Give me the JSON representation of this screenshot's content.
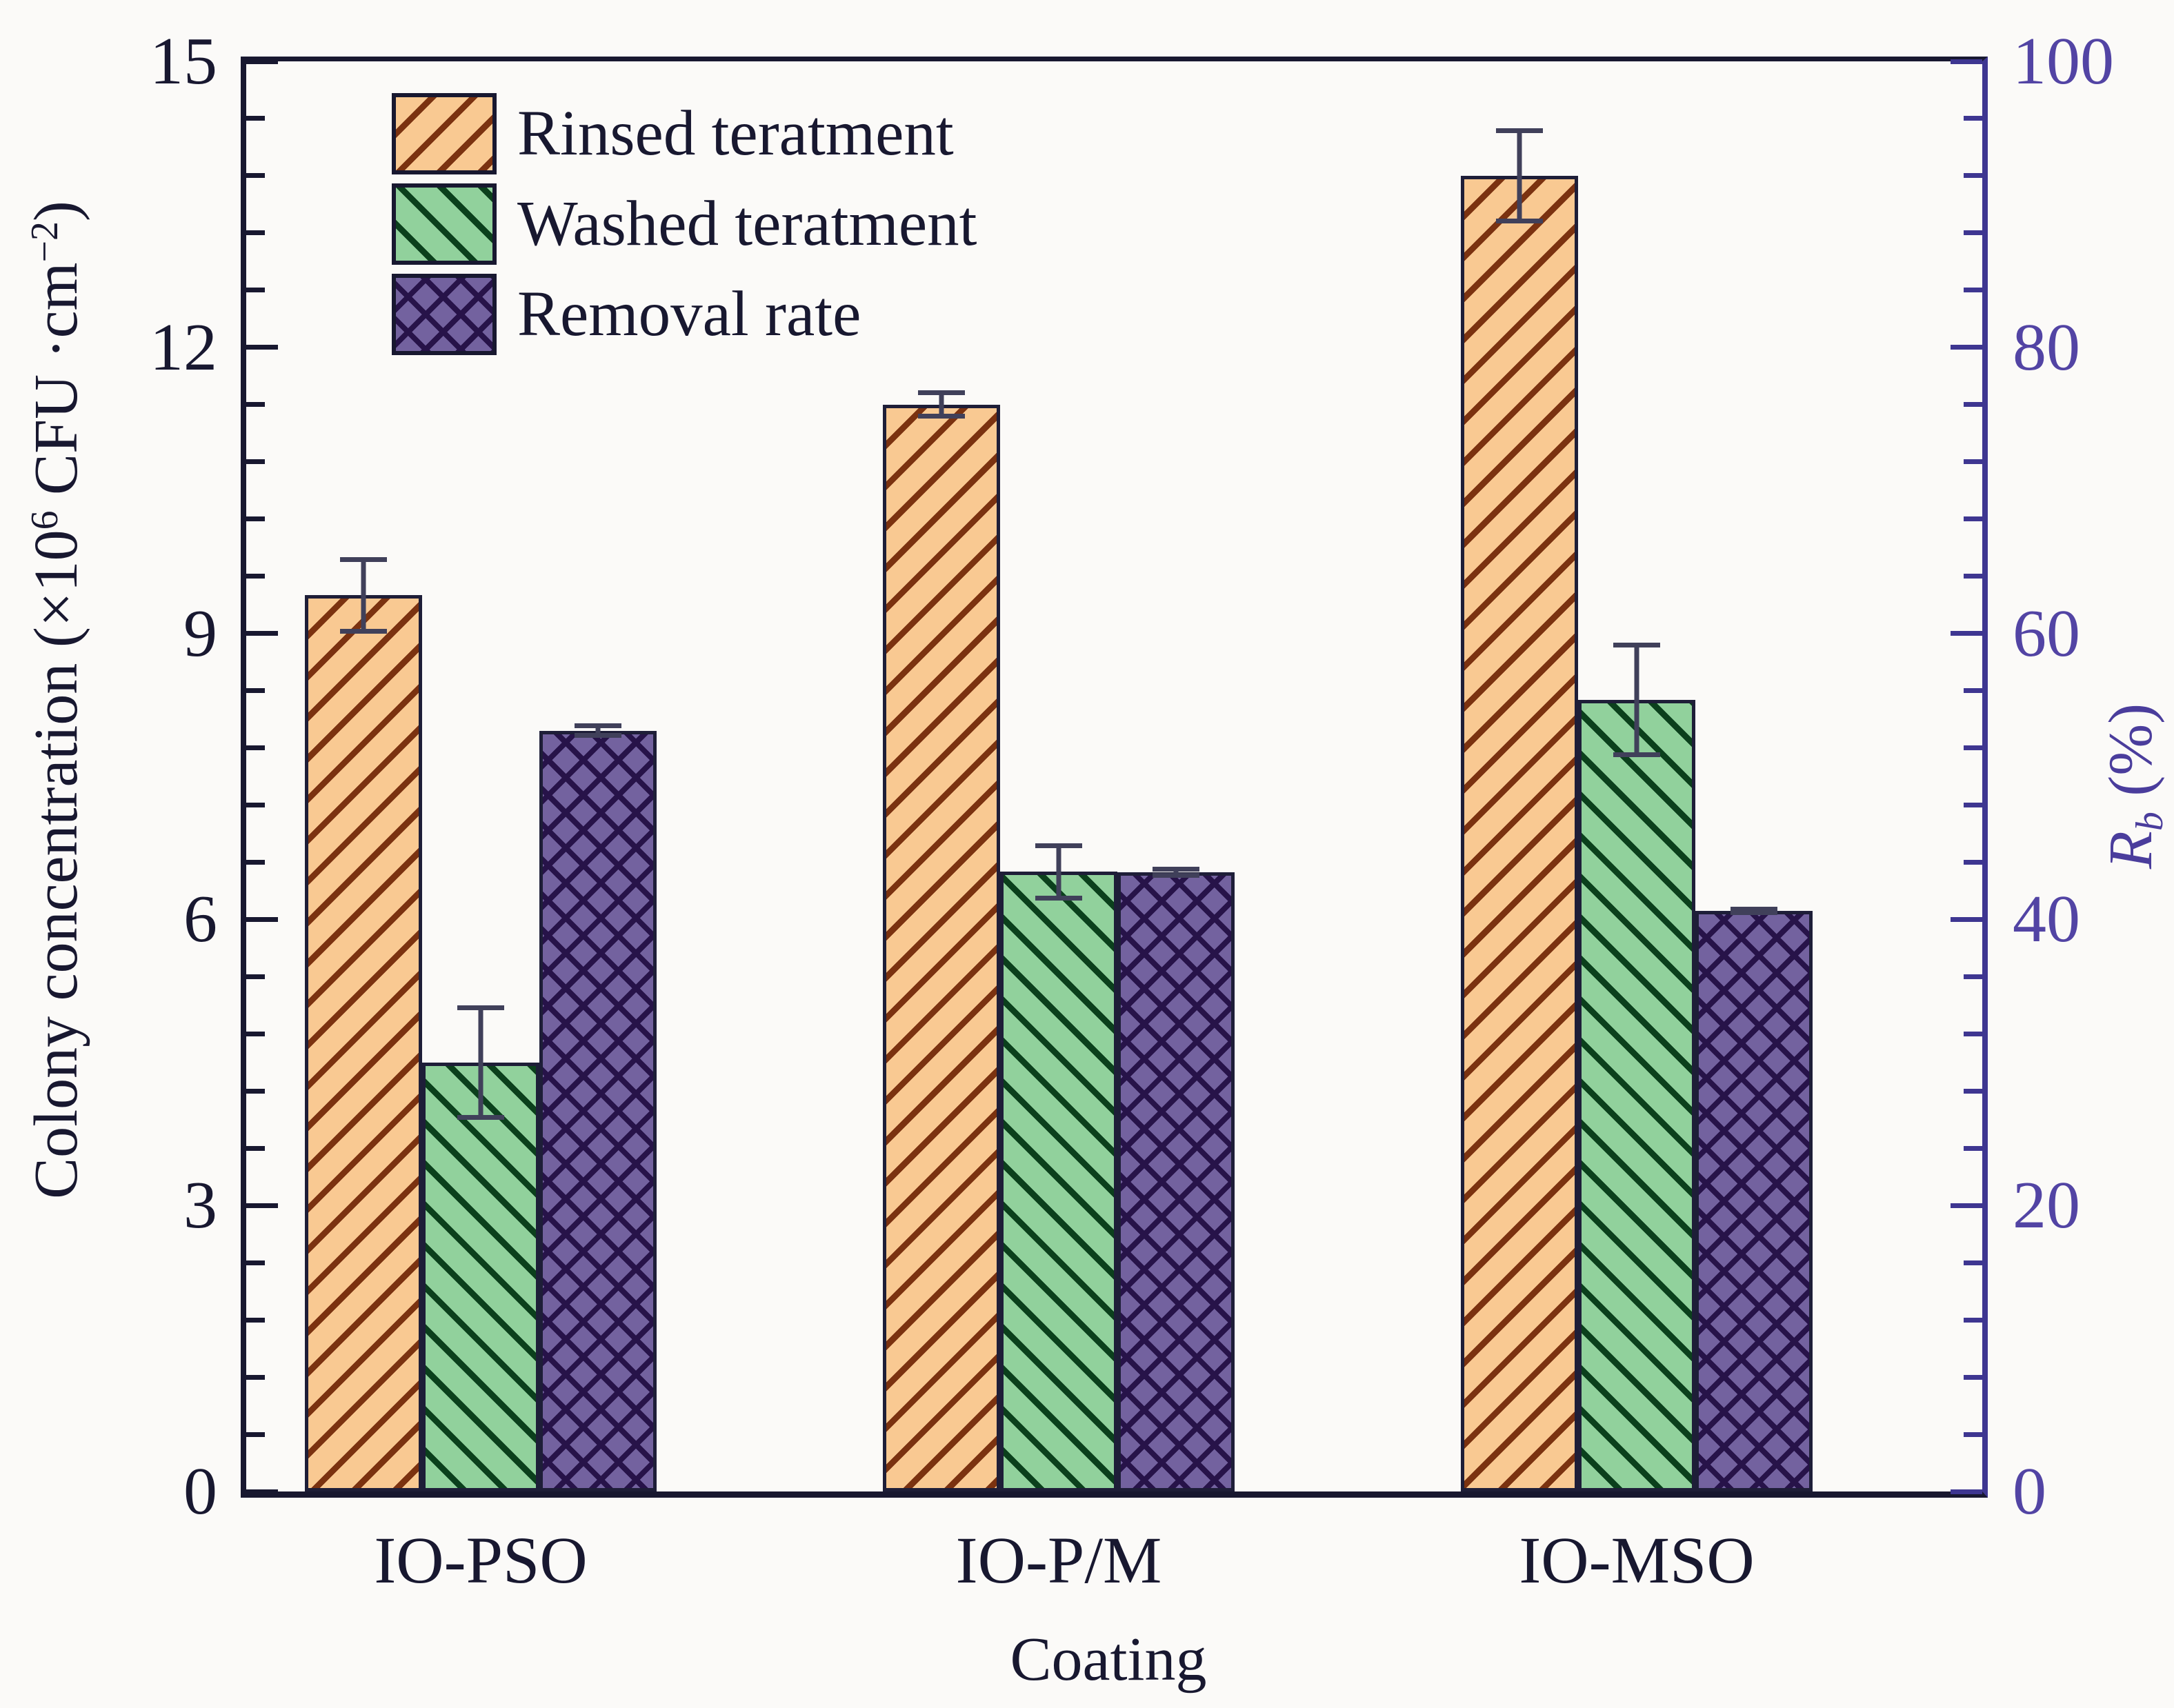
{
  "figure": {
    "background": "#fbfaf8"
  },
  "legend": {
    "items": [
      {
        "label": "Rinsed teratment",
        "series": "rinsed"
      },
      {
        "label": "Washed teratment",
        "series": "washed"
      },
      {
        "label": "Removal rate",
        "series": "removal"
      }
    ]
  },
  "axes": {
    "left": {
      "title_parts": {
        "pre": "Colony concentration (×10",
        "sup1": "6",
        "mid": " CFU ·cm",
        "sup2": "−2",
        "post": ")"
      },
      "ticks": [
        0,
        3,
        6,
        9,
        12,
        15
      ],
      "minor_step": 0.6,
      "range": [
        0,
        15
      ],
      "color": "#181830"
    },
    "right": {
      "title_parts": {
        "r": "R",
        "sub": "b",
        "rest": " (%)"
      },
      "ticks": [
        0,
        20,
        40,
        60,
        80,
        100
      ],
      "minor_step": 4,
      "range": [
        0,
        100
      ],
      "color": "#3e3691",
      "label_color": "#5244a4"
    },
    "bottom": {
      "title": "Coating"
    }
  },
  "chart_data": {
    "type": "bar",
    "title": "",
    "categories": [
      "IO-PSO",
      "IO-P/M",
      "IO-MSO"
    ],
    "series": [
      {
        "key": "rinsed",
        "name": "Rinsed teratment",
        "axis": "left",
        "pattern": "diagonal-up",
        "fill": "#f9c992",
        "hatch": "#7b3210",
        "values": [
          9.4,
          11.4,
          13.8
        ],
        "errors": [
          0.4,
          0.15,
          0.5
        ]
      },
      {
        "key": "washed",
        "name": "Washed teratment",
        "axis": "left",
        "pattern": "diagonal-down",
        "fill": "#91d19c",
        "hatch": "#0b401c",
        "values": [
          4.5,
          6.5,
          8.3
        ],
        "errors": [
          0.6,
          0.3,
          0.6
        ]
      },
      {
        "key": "removal",
        "name": "Removal rate",
        "axis": "right",
        "pattern": "crosshatch",
        "fill": "#73629f",
        "hatch": "#271349",
        "values": [
          53.2,
          43.3,
          40.6
        ],
        "errors": [
          0.5,
          0.4,
          0.3
        ]
      }
    ],
    "xlabel": "Coating",
    "ylabel": "Colony concentration (×10^6 CFU·cm^−2)",
    "y2label": "Rb (%)",
    "ylim": [
      0,
      15
    ],
    "y2lim": [
      0,
      100
    ],
    "grid": false,
    "legend_position": "upper-left"
  }
}
